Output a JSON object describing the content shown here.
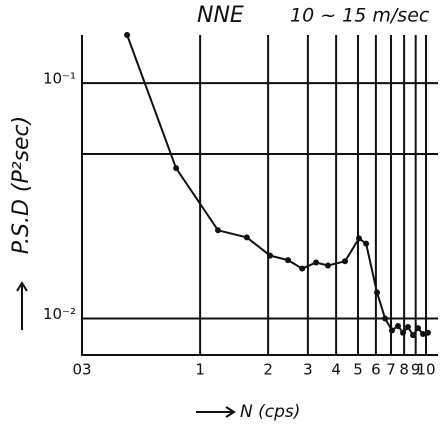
{
  "chart_data": {
    "type": "line",
    "title": "NNE",
    "subtitle": "10 ~ 15 m/sec",
    "x_label": "N (cps)",
    "y_label": "P.S.D (P²sec)",
    "log_x": true,
    "log_y": true,
    "grid": true,
    "color": "#111111",
    "xlim": [
      0.3,
      11.3
    ],
    "ylim": [
      0.007,
      0.16
    ],
    "xticks": [
      {
        "value": 0.3,
        "label": "03"
      },
      1,
      2,
      3,
      4,
      5,
      6,
      7,
      8,
      9,
      10
    ],
    "yticks": [
      {
        "value": 0.1,
        "label": "10⁻¹"
      },
      {
        "value": 0.01,
        "label": "10⁻²"
      }
    ],
    "ygrid": [
      0.1,
      0.05,
      0.01
    ],
    "x": [
      0.475,
      0.783,
      1.2,
      1.61,
      2.04,
      2.45,
      2.83,
      3.26,
      3.68,
      4.38,
      5.05,
      5.43,
      6.07,
      6.59,
      7.07,
      7.52,
      7.91,
      8.32,
      8.76,
      9.22,
      9.7,
      10.2
    ],
    "values": [
      0.16,
      0.0435,
      0.0237,
      0.0221,
      0.0185,
      0.0177,
      0.0163,
      0.0173,
      0.0168,
      0.0175,
      0.0219,
      0.0208,
      0.0129,
      0.01,
      0.0089,
      0.0093,
      0.0087,
      0.0092,
      0.0085,
      0.0091,
      0.0086,
      0.0087
    ]
  }
}
